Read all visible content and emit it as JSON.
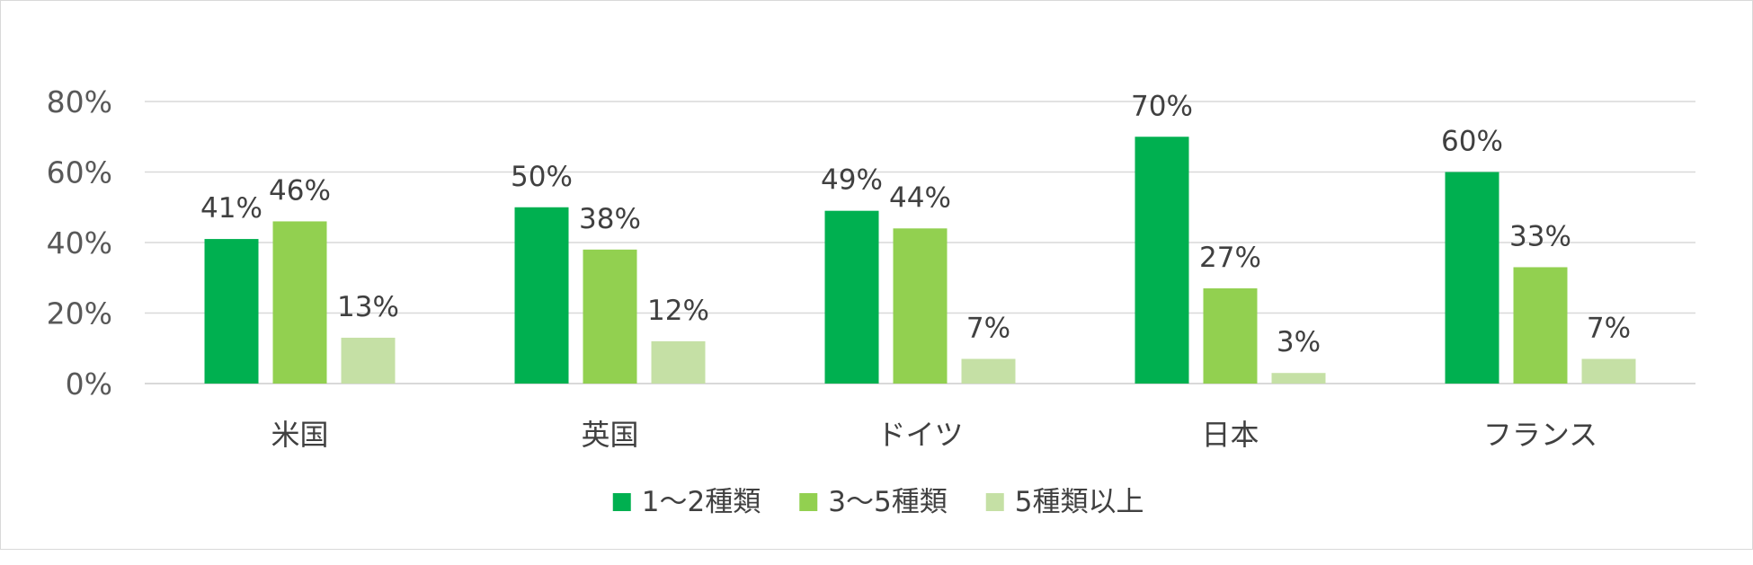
{
  "chart_data": {
    "type": "bar",
    "categories": [
      "米国",
      "英国",
      "ドイツ",
      "日本",
      "フランス"
    ],
    "series": [
      {
        "name": "1～2種類",
        "color": "#00b050",
        "values": [
          41,
          50,
          49,
          70,
          60
        ]
      },
      {
        "name": "3～5種類",
        "color": "#92d050",
        "values": [
          46,
          38,
          44,
          27,
          33
        ]
      },
      {
        "name": "5種類以上",
        "color": "#c5e0a5",
        "values": [
          13,
          12,
          7,
          3,
          7
        ]
      }
    ],
    "ylim": [
      0,
      80
    ],
    "yticks": [
      0,
      20,
      40,
      60,
      80
    ],
    "ytick_labels": [
      "0%",
      "20%",
      "40%",
      "60%",
      "80%"
    ],
    "value_suffix": "%",
    "grid": true,
    "legend_position": "bottom",
    "title": "",
    "xlabel": "",
    "ylabel": ""
  }
}
